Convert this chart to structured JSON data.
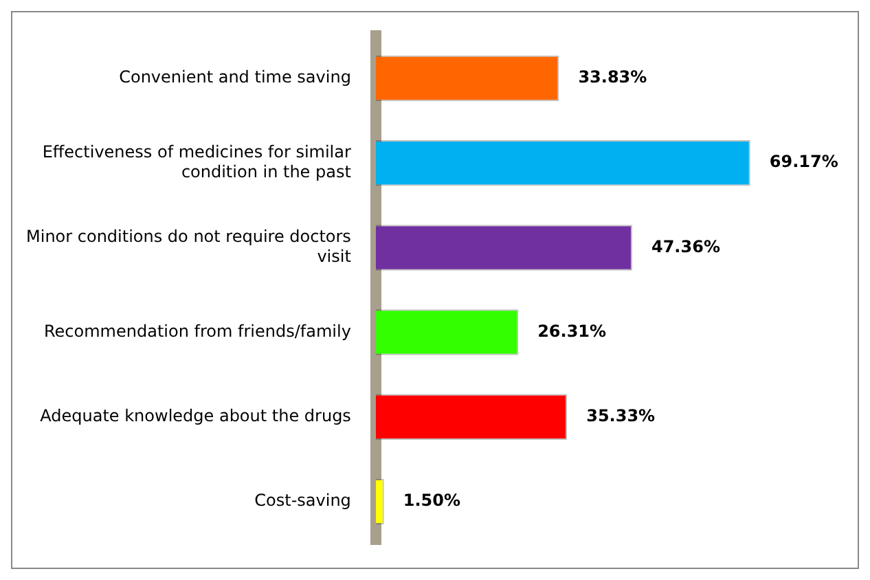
{
  "chart_data": {
    "type": "bar",
    "orientation": "horizontal",
    "categories": [
      "Convenient and time saving",
      "Effectiveness of medicines for similar condition in the past",
      "Minor conditions do not require doctors visit",
      "Recommendation from friends/family",
      "Adequate knowledge about the drugs",
      "Cost-saving"
    ],
    "values": [
      33.83,
      69.17,
      47.36,
      26.31,
      35.33,
      1.5
    ],
    "colors": [
      "#ff6600",
      "#00b0f0",
      "#7030a0",
      "#33ff00",
      "#ff0000",
      "#ffff00"
    ],
    "value_labels": [
      "33.83%",
      "69.17%",
      "47.36%",
      "26.31%",
      "35.33%",
      "1.50%"
    ],
    "legend": false,
    "tick_labels": "y"
  }
}
